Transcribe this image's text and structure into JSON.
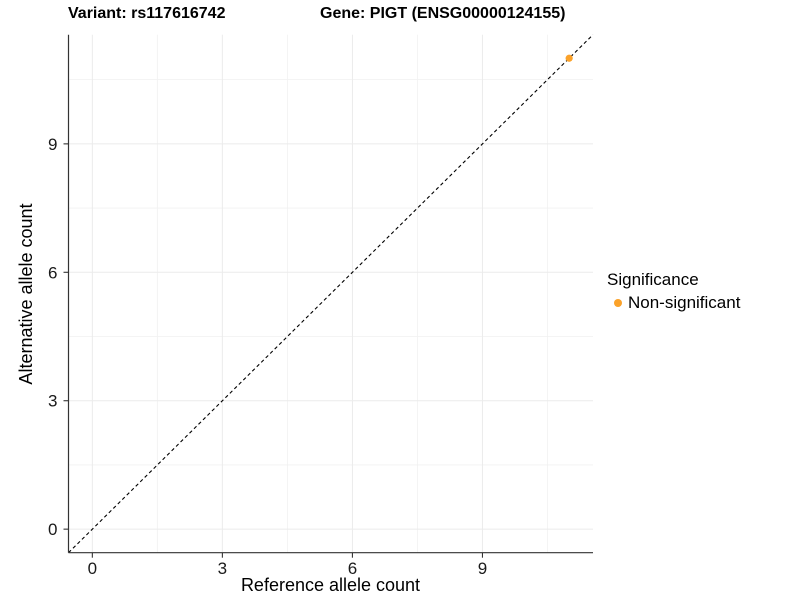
{
  "header": {
    "title_left": "Variant: rs117616742",
    "title_right": "Gene: PIGT (ENSG00000124155)"
  },
  "chart_data": {
    "type": "scatter",
    "title": "Variant: rs117616742   Gene: PIGT (ENSG00000124155)",
    "xlabel": "Reference allele count",
    "ylabel": "Alternative allele count",
    "xlim": [
      -0.55,
      11.55
    ],
    "ylim": [
      -0.55,
      11.55
    ],
    "x_ticks": [
      0,
      3,
      6,
      9
    ],
    "y_ticks": [
      0,
      3,
      6,
      9
    ],
    "x_minor_ticks": [
      1.5,
      4.5,
      7.5,
      10.5
    ],
    "y_minor_ticks": [
      1.5,
      4.5,
      7.5,
      10.5
    ],
    "grid": "major+minor",
    "reference_line": {
      "kind": "identity y=x",
      "style": "dashed",
      "color": "#000000"
    },
    "series": [
      {
        "name": "Non-significant",
        "color": "#FBA22A",
        "points": [
          [
            11,
            11
          ]
        ]
      }
    ],
    "legend": {
      "title": "Significance",
      "position": "right",
      "items": [
        {
          "label": "Non-significant",
          "color": "#FBA22A"
        }
      ]
    }
  },
  "style_colors": {
    "background": "#FFFFFF",
    "axis_line": "#333333",
    "tick_label": "#1A1A1A",
    "grid_major": "#EBEBEB",
    "grid_minor": "#F1F1F1"
  }
}
